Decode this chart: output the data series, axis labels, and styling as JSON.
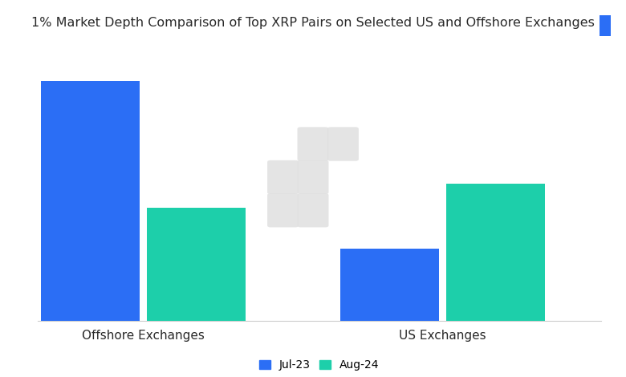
{
  "title": "1% Market Depth Comparison of Top XRP Pairs on Selected US and Offshore Exchanges",
  "categories": [
    "Offshore Exchanges",
    "US Exchanges"
  ],
  "series": {
    "Jul-23": [
      100,
      30
    ],
    "Aug-24": [
      47,
      57
    ]
  },
  "bar_colors": {
    "Jul-23": "#2B6EF5",
    "Aug-24": "#1DCFAA"
  },
  "background_color": "#ffffff",
  "text_color": "#2a2a2a",
  "bar_width": 0.28,
  "title_fontsize": 11.5,
  "legend_fontsize": 10,
  "xlabel_fontsize": 11,
  "ylim": [
    0,
    115
  ],
  "group_positions": [
    0.25,
    1.1
  ],
  "xlim": [
    -0.05,
    1.55
  ],
  "watermark_color": "#e0e0e0",
  "watermark_alpha": 0.85,
  "branding_color": "#2B6EF5"
}
